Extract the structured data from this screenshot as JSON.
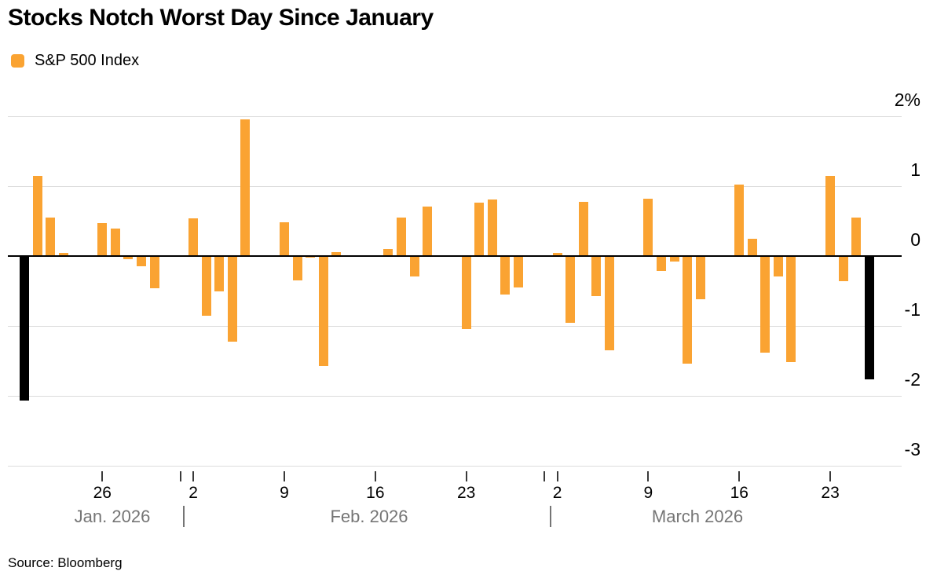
{
  "title": "Stocks Notch Worst Day Since January",
  "legend": {
    "label": "S&P 500 Index"
  },
  "source": "Source: Bloomberg",
  "colors": {
    "bar": "#FAA332",
    "highlight_bar": "#000000",
    "gridline": "#DCDCDC",
    "zero_line": "#000000",
    "month_text": "#757575",
    "axis_text": "#000000"
  },
  "chart_data": {
    "type": "bar",
    "title": "Stocks Notch Worst Day Since January",
    "series_name": "S&P 500 Index",
    "unit": "% daily change",
    "ylim": [
      -3,
      2
    ],
    "grid": "horizontal",
    "legend_position": "top-left",
    "y_ticks": [
      {
        "label": "2%",
        "value": 2
      },
      {
        "label": "1",
        "value": 1
      },
      {
        "label": "0",
        "value": 0
      },
      {
        "label": "-1",
        "value": -1
      },
      {
        "label": "-2",
        "value": -2
      },
      {
        "label": "-3",
        "value": -3
      }
    ],
    "x_ticks": [
      {
        "label": "26",
        "offset": 6
      },
      {
        "label": "2",
        "offset": 13
      },
      {
        "label": "9",
        "offset": 20
      },
      {
        "label": "16",
        "offset": 27
      },
      {
        "label": "23",
        "offset": 34
      },
      {
        "label": "2",
        "offset": 41
      },
      {
        "label": "9",
        "offset": 48
      },
      {
        "label": "16",
        "offset": 55
      },
      {
        "label": "23",
        "offset": 62
      }
    ],
    "month_boundary_offsets": [
      12,
      40
    ],
    "month_labels": [
      "Jan. 2026",
      "Feb. 2026",
      "March 2026"
    ],
    "month_separator": "|",
    "points": [
      {
        "date": "Jan 20",
        "offset": 0,
        "value": -2.07,
        "highlight": true
      },
      {
        "date": "Jan 21",
        "offset": 1,
        "value": 1.15,
        "highlight": false
      },
      {
        "date": "Jan 22",
        "offset": 2,
        "value": 0.55,
        "highlight": false
      },
      {
        "date": "Jan 23",
        "offset": 3,
        "value": 0.04,
        "highlight": false
      },
      {
        "date": "Jan 26",
        "offset": 6,
        "value": 0.47,
        "highlight": false
      },
      {
        "date": "Jan 27",
        "offset": 7,
        "value": 0.39,
        "highlight": false
      },
      {
        "date": "Jan 28",
        "offset": 8,
        "value": -0.05,
        "highlight": false
      },
      {
        "date": "Jan 29",
        "offset": 9,
        "value": -0.15,
        "highlight": false
      },
      {
        "date": "Jan 30",
        "offset": 10,
        "value": -0.46,
        "highlight": false
      },
      {
        "date": "Feb 2",
        "offset": 13,
        "value": 0.54,
        "highlight": false
      },
      {
        "date": "Feb 3",
        "offset": 14,
        "value": -0.85,
        "highlight": false
      },
      {
        "date": "Feb 4",
        "offset": 15,
        "value": -0.5,
        "highlight": false
      },
      {
        "date": "Feb 5",
        "offset": 16,
        "value": -1.22,
        "highlight": false
      },
      {
        "date": "Feb 6",
        "offset": 17,
        "value": 1.96,
        "highlight": false
      },
      {
        "date": "Feb 9",
        "offset": 20,
        "value": 0.48,
        "highlight": false
      },
      {
        "date": "Feb 10",
        "offset": 21,
        "value": -0.35,
        "highlight": false
      },
      {
        "date": "Feb 11",
        "offset": 22,
        "value": -0.02,
        "highlight": false
      },
      {
        "date": "Feb 12",
        "offset": 23,
        "value": -1.57,
        "highlight": false
      },
      {
        "date": "Feb 13",
        "offset": 24,
        "value": 0.06,
        "highlight": false
      },
      {
        "date": "Feb 17",
        "offset": 28,
        "value": 0.1,
        "highlight": false
      },
      {
        "date": "Feb 18",
        "offset": 29,
        "value": 0.55,
        "highlight": false
      },
      {
        "date": "Feb 19",
        "offset": 30,
        "value": -0.29,
        "highlight": false
      },
      {
        "date": "Feb 20",
        "offset": 31,
        "value": 0.71,
        "highlight": false
      },
      {
        "date": "Feb 23",
        "offset": 34,
        "value": -1.05,
        "highlight": false
      },
      {
        "date": "Feb 24",
        "offset": 35,
        "value": 0.76,
        "highlight": false
      },
      {
        "date": "Feb 25",
        "offset": 36,
        "value": 0.81,
        "highlight": false
      },
      {
        "date": "Feb 26",
        "offset": 37,
        "value": -0.55,
        "highlight": false
      },
      {
        "date": "Feb 27",
        "offset": 38,
        "value": -0.45,
        "highlight": false
      },
      {
        "date": "Mar 2",
        "offset": 41,
        "value": 0.05,
        "highlight": false
      },
      {
        "date": "Mar 3",
        "offset": 42,
        "value": -0.96,
        "highlight": false
      },
      {
        "date": "Mar 4",
        "offset": 43,
        "value": 0.77,
        "highlight": false
      },
      {
        "date": "Mar 5",
        "offset": 44,
        "value": -0.57,
        "highlight": false
      },
      {
        "date": "Mar 6",
        "offset": 45,
        "value": -1.35,
        "highlight": false
      },
      {
        "date": "Mar 9",
        "offset": 48,
        "value": 0.82,
        "highlight": false
      },
      {
        "date": "Mar 10",
        "offset": 49,
        "value": -0.21,
        "highlight": false
      },
      {
        "date": "Mar 11",
        "offset": 50,
        "value": -0.08,
        "highlight": false
      },
      {
        "date": "Mar 12",
        "offset": 51,
        "value": -1.54,
        "highlight": false
      },
      {
        "date": "Mar 13",
        "offset": 52,
        "value": -0.62,
        "highlight": false
      },
      {
        "date": "Mar 16",
        "offset": 55,
        "value": 1.02,
        "highlight": false
      },
      {
        "date": "Mar 17",
        "offset": 56,
        "value": 0.25,
        "highlight": false
      },
      {
        "date": "Mar 18",
        "offset": 57,
        "value": -1.38,
        "highlight": false
      },
      {
        "date": "Mar 19",
        "offset": 58,
        "value": -0.29,
        "highlight": false
      },
      {
        "date": "Mar 20",
        "offset": 59,
        "value": -1.52,
        "highlight": false
      },
      {
        "date": "Mar 23",
        "offset": 62,
        "value": 1.15,
        "highlight": false
      },
      {
        "date": "Mar 24",
        "offset": 63,
        "value": -0.36,
        "highlight": false
      },
      {
        "date": "Mar 25",
        "offset": 64,
        "value": 0.55,
        "highlight": false
      },
      {
        "date": "Mar 26",
        "offset": 65,
        "value": -1.76,
        "highlight": true
      }
    ]
  }
}
